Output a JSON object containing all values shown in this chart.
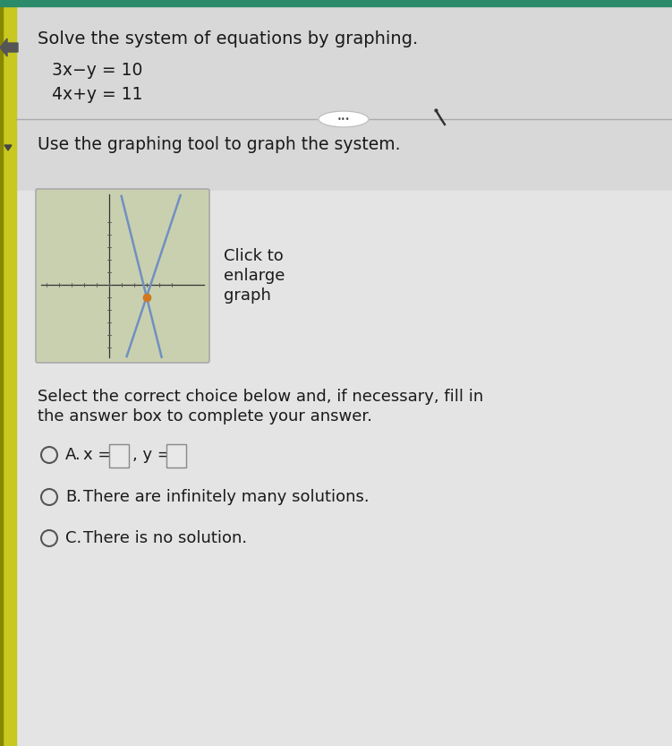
{
  "title": "Solve the system of equations by graphing.",
  "eq1": "3x−y = 10",
  "eq2": "4x+y = 11",
  "use_tool_text": "Use the graphing tool to graph the system.",
  "click_to": "Click to",
  "enlarge": "enlarge",
  "graph_word": "graph",
  "select_line1": "Select the correct choice below and, if necessary, fill in",
  "select_line2": "the answer box to complete your answer.",
  "bg_top": "#dcdcdc",
  "bg_bottom": "#e8e8e8",
  "graph_bg": "#c8d0b0",
  "line1_color": "#7090c0",
  "line2_color": "#7090c0",
  "dot_color": "#d07820",
  "text_color": "#1a1a1a",
  "sidebar_color": "#c8c820",
  "sidebar_dark": "#888800",
  "separator_color": "#aaaaaa",
  "radio_color": "#555555",
  "input_box_color": "#cccccc",
  "teal_top": "#2a8a6a"
}
